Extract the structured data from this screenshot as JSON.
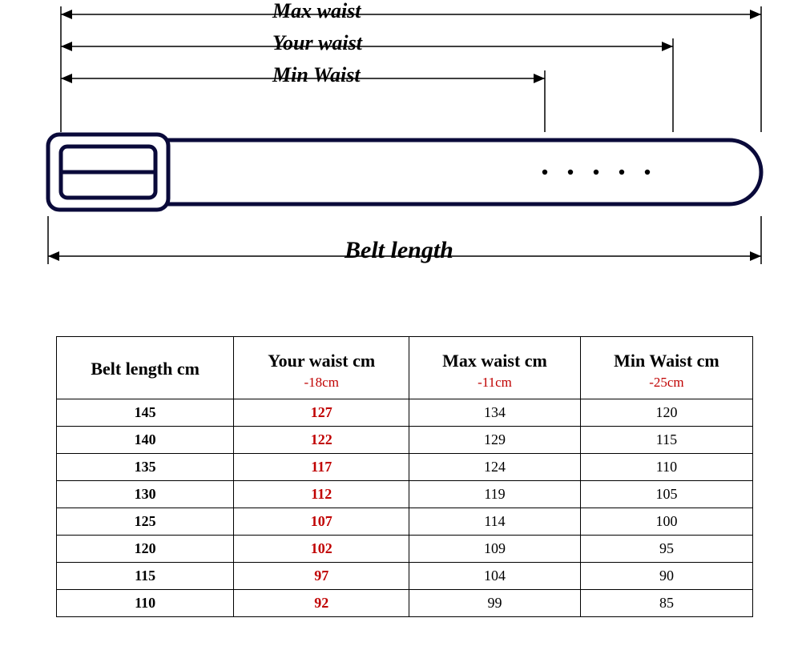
{
  "diagram": {
    "labels": {
      "max_waist": "Max waist",
      "your_waist": "Your waist",
      "min_waist": "Min Waist",
      "belt_length": "Belt length"
    },
    "label_fontsize": 26,
    "belt_length_fontsize": 30,
    "stroke_color": "#0a0a3a",
    "dim_line_color": "#000000",
    "belt_stroke_width": 5,
    "hole_count": 5,
    "hole_radius": 3.2
  },
  "table": {
    "columns": [
      {
        "title": "Belt length cm",
        "sub": "",
        "sub_color": "#000000",
        "bold_cells": true,
        "cell_color": "#000000"
      },
      {
        "title": "Your waist cm",
        "sub": "-18cm",
        "sub_color": "#c00000",
        "bold_cells": true,
        "cell_color": "#c00000"
      },
      {
        "title": "Max waist cm",
        "sub": "-11cm",
        "sub_color": "#c00000",
        "bold_cells": false,
        "cell_color": "#000000"
      },
      {
        "title": "Min Waist cm",
        "sub": "-25cm",
        "sub_color": "#c00000",
        "bold_cells": false,
        "cell_color": "#000000"
      }
    ],
    "rows": [
      [
        "145",
        "127",
        "134",
        "120"
      ],
      [
        "140",
        "122",
        "129",
        "115"
      ],
      [
        "135",
        "117",
        "124",
        "110"
      ],
      [
        "130",
        "112",
        "119",
        "105"
      ],
      [
        "125",
        "107",
        "114",
        "100"
      ],
      [
        "120",
        "102",
        "109",
        "95"
      ],
      [
        "115",
        "97",
        "104",
        "90"
      ],
      [
        "110",
        "92",
        "99",
        "85"
      ]
    ],
    "header_fontsize": 22,
    "sub_fontsize": 17,
    "cell_fontsize": 18,
    "border_color": "#000000"
  }
}
